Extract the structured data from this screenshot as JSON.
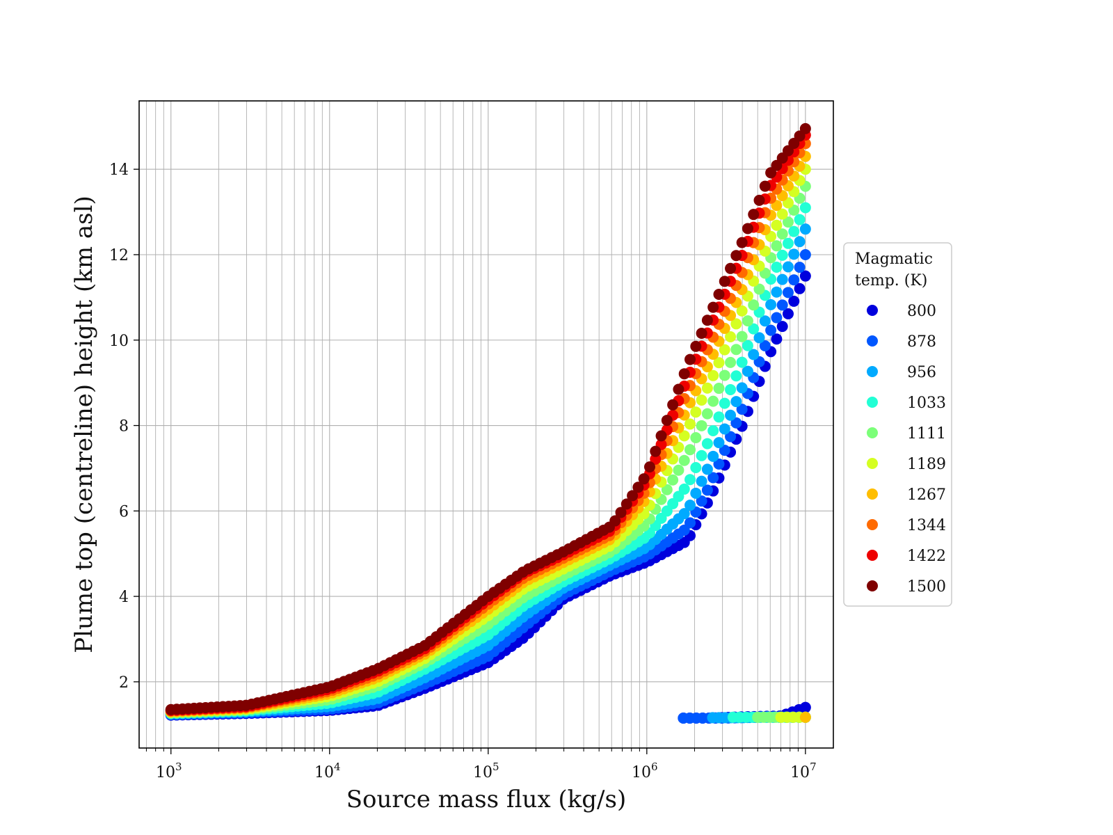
{
  "chart_data": {
    "type": "scatter",
    "xlabel": "Source mass flux (kg/s)",
    "ylabel": "Plume top (centreline) height (km asl)",
    "xscale": "log",
    "xlim": [
      630,
      15000000
    ],
    "ylim": [
      0.45,
      15.6
    ],
    "x_ticks": [
      {
        "base": "10",
        "exp": "3",
        "value": 1000
      },
      {
        "base": "10",
        "exp": "4",
        "value": 10000
      },
      {
        "base": "10",
        "exp": "5",
        "value": 100000
      },
      {
        "base": "10",
        "exp": "6",
        "value": 1000000
      },
      {
        "base": "10",
        "exp": "7",
        "value": 10000000
      }
    ],
    "y_ticks": [
      {
        "label": "2",
        "value": 2
      },
      {
        "label": "4",
        "value": 4
      },
      {
        "label": "6",
        "value": 6
      },
      {
        "label": "8",
        "value": 8
      },
      {
        "label": "10",
        "value": 10
      },
      {
        "label": "12",
        "value": 12
      },
      {
        "label": "14",
        "value": 14
      }
    ],
    "grid": true,
    "legend": {
      "title_lines": [
        "Magmatic",
        "temp. (K)"
      ],
      "placement": "outside-right"
    },
    "series": [
      {
        "name": "800",
        "color": "#0000dd",
        "points": [
          [
            1000,
            1.22
          ],
          [
            3000,
            1.26
          ],
          [
            10000,
            1.33
          ],
          [
            20000,
            1.44
          ],
          [
            40000,
            1.85
          ],
          [
            100000,
            2.45
          ],
          [
            170000,
            3.05
          ],
          [
            300000,
            3.95
          ],
          [
            600000,
            4.5
          ],
          [
            1000000,
            4.8
          ],
          [
            1800000,
            5.3
          ],
          [
            2500000,
            6.3
          ],
          [
            4000000,
            8.0
          ],
          [
            6000000,
            9.7
          ],
          [
            10000000,
            11.5
          ]
        ],
        "lower_points": [
          [
            1700000,
            1.15
          ],
          [
            2500000,
            1.15
          ],
          [
            4000000,
            1.18
          ],
          [
            7000000,
            1.2
          ],
          [
            10000000,
            1.4
          ]
        ]
      },
      {
        "name": "878",
        "color": "#0057ff",
        "points": [
          [
            1000,
            1.23
          ],
          [
            3000,
            1.28
          ],
          [
            10000,
            1.36
          ],
          [
            20000,
            1.5
          ],
          [
            40000,
            1.95
          ],
          [
            100000,
            2.6
          ],
          [
            170000,
            3.3
          ],
          [
            300000,
            4.05
          ],
          [
            600000,
            4.6
          ],
          [
            1000000,
            4.95
          ],
          [
            1800000,
            5.6
          ],
          [
            2500000,
            6.6
          ],
          [
            4000000,
            8.4
          ],
          [
            6000000,
            10.2
          ],
          [
            10000000,
            12.0
          ]
        ],
        "lower_points": [
          [
            1700000,
            1.15
          ],
          [
            3000000,
            1.15
          ],
          [
            5000000,
            1.17
          ],
          [
            7000000,
            1.17
          ],
          [
            10000000,
            1.17
          ]
        ]
      },
      {
        "name": "956",
        "color": "#00aaff",
        "points": [
          [
            1000,
            1.25
          ],
          [
            3000,
            1.3
          ],
          [
            10000,
            1.42
          ],
          [
            20000,
            1.6
          ],
          [
            40000,
            2.1
          ],
          [
            100000,
            2.85
          ],
          [
            170000,
            3.55
          ],
          [
            300000,
            4.2
          ],
          [
            600000,
            4.75
          ],
          [
            1000000,
            5.15
          ],
          [
            1800000,
            6.0
          ],
          [
            2500000,
            7.1
          ],
          [
            4000000,
            8.9
          ],
          [
            6000000,
            10.8
          ],
          [
            10000000,
            12.6
          ]
        ],
        "lower_points": [
          [
            2600000,
            1.16
          ],
          [
            4000000,
            1.16
          ],
          [
            6000000,
            1.18
          ],
          [
            8000000,
            1.17
          ],
          [
            10000000,
            1.17
          ]
        ]
      },
      {
        "name": "1033",
        "color": "#22ffd5",
        "points": [
          [
            1000,
            1.26
          ],
          [
            3000,
            1.32
          ],
          [
            10000,
            1.5
          ],
          [
            20000,
            1.75
          ],
          [
            40000,
            2.3
          ],
          [
            100000,
            3.1
          ],
          [
            170000,
            3.8
          ],
          [
            300000,
            4.35
          ],
          [
            600000,
            4.9
          ],
          [
            1000000,
            5.4
          ],
          [
            1800000,
            6.6
          ],
          [
            2500000,
            7.7
          ],
          [
            4000000,
            9.5
          ],
          [
            6000000,
            11.4
          ],
          [
            10000000,
            13.1
          ]
        ],
        "lower_points": [
          [
            3500000,
            1.17
          ],
          [
            5000000,
            1.17
          ],
          [
            7000000,
            1.17
          ],
          [
            10000000,
            1.17
          ]
        ]
      },
      {
        "name": "1111",
        "color": "#7cff79",
        "points": [
          [
            1000,
            1.27
          ],
          [
            3000,
            1.34
          ],
          [
            10000,
            1.58
          ],
          [
            20000,
            1.9
          ],
          [
            40000,
            2.45
          ],
          [
            100000,
            3.35
          ],
          [
            170000,
            4.0
          ],
          [
            300000,
            4.5
          ],
          [
            600000,
            5.05
          ],
          [
            1000000,
            5.7
          ],
          [
            1800000,
            7.3
          ],
          [
            2500000,
            8.4
          ],
          [
            4000000,
            10.1
          ],
          [
            6000000,
            11.9
          ],
          [
            10000000,
            13.6
          ]
        ],
        "lower_points": [
          [
            5000000,
            1.17
          ],
          [
            7000000,
            1.17
          ],
          [
            10000000,
            1.17
          ]
        ]
      },
      {
        "name": "1189",
        "color": "#d5ff22",
        "points": [
          [
            1000,
            1.29
          ],
          [
            3000,
            1.36
          ],
          [
            10000,
            1.66
          ],
          [
            20000,
            2.0
          ],
          [
            40000,
            2.55
          ],
          [
            100000,
            3.55
          ],
          [
            170000,
            4.2
          ],
          [
            300000,
            4.65
          ],
          [
            600000,
            5.2
          ],
          [
            1000000,
            6.0
          ],
          [
            1800000,
            7.9
          ],
          [
            2500000,
            9.0
          ],
          [
            4000000,
            10.7
          ],
          [
            6000000,
            12.4
          ],
          [
            10000000,
            14.0
          ]
        ],
        "lower_points": [
          [
            7000000,
            1.17
          ],
          [
            8500000,
            1.17
          ],
          [
            10000000,
            1.17
          ]
        ]
      },
      {
        "name": "1267",
        "color": "#ffbe00",
        "points": [
          [
            1000,
            1.3
          ],
          [
            3000,
            1.38
          ],
          [
            10000,
            1.72
          ],
          [
            20000,
            2.1
          ],
          [
            40000,
            2.65
          ],
          [
            100000,
            3.7
          ],
          [
            170000,
            4.35
          ],
          [
            300000,
            4.8
          ],
          [
            600000,
            5.35
          ],
          [
            1000000,
            6.3
          ],
          [
            1800000,
            8.4
          ],
          [
            2500000,
            9.5
          ],
          [
            4000000,
            11.2
          ],
          [
            6000000,
            12.9
          ],
          [
            10000000,
            14.3
          ]
        ],
        "lower_points": [
          [
            10000000,
            1.17
          ]
        ]
      },
      {
        "name": "1344",
        "color": "#ff6a00",
        "points": [
          [
            1000,
            1.32
          ],
          [
            3000,
            1.4
          ],
          [
            10000,
            1.78
          ],
          [
            20000,
            2.17
          ],
          [
            40000,
            2.72
          ],
          [
            100000,
            3.82
          ],
          [
            170000,
            4.45
          ],
          [
            300000,
            4.9
          ],
          [
            600000,
            5.45
          ],
          [
            1000000,
            6.5
          ],
          [
            1800000,
            8.8
          ],
          [
            2500000,
            9.9
          ],
          [
            4000000,
            11.6
          ],
          [
            6000000,
            13.3
          ],
          [
            10000000,
            14.6
          ]
        ],
        "lower_points": []
      },
      {
        "name": "1422",
        "color": "#ee0000",
        "points": [
          [
            1000,
            1.33
          ],
          [
            3000,
            1.42
          ],
          [
            10000,
            1.83
          ],
          [
            20000,
            2.24
          ],
          [
            40000,
            2.78
          ],
          [
            100000,
            3.92
          ],
          [
            170000,
            4.55
          ],
          [
            300000,
            4.98
          ],
          [
            600000,
            5.55
          ],
          [
            1000000,
            6.7
          ],
          [
            1800000,
            9.1
          ],
          [
            2500000,
            10.3
          ],
          [
            4000000,
            12.0
          ],
          [
            6000000,
            13.6
          ],
          [
            10000000,
            14.8
          ]
        ],
        "lower_points": []
      },
      {
        "name": "1500",
        "color": "#7f0000",
        "points": [
          [
            1000,
            1.35
          ],
          [
            3000,
            1.45
          ],
          [
            10000,
            1.88
          ],
          [
            20000,
            2.3
          ],
          [
            40000,
            2.85
          ],
          [
            100000,
            4.0
          ],
          [
            170000,
            4.6
          ],
          [
            300000,
            5.05
          ],
          [
            600000,
            5.65
          ],
          [
            1000000,
            6.85
          ],
          [
            1800000,
            9.4
          ],
          [
            2500000,
            10.6
          ],
          [
            4000000,
            12.3
          ],
          [
            6000000,
            13.9
          ],
          [
            10000000,
            14.95
          ]
        ],
        "lower_points": []
      }
    ]
  }
}
